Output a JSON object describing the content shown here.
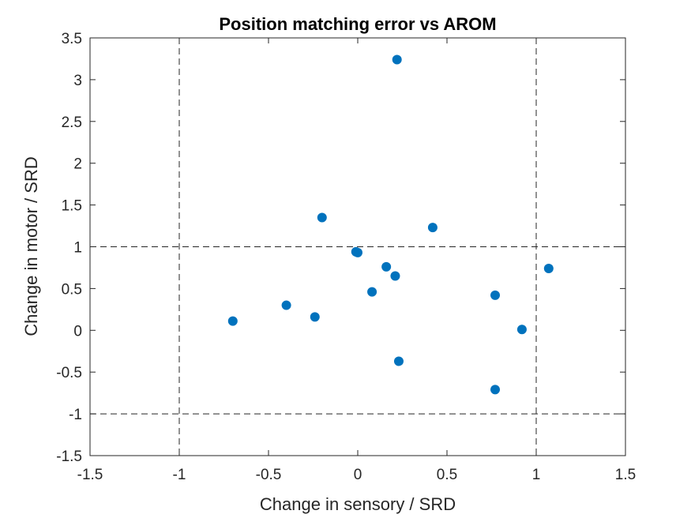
{
  "chart_data": {
    "type": "scatter",
    "title": "Position matching error vs AROM",
    "xlabel": "Change in sensory / SRD",
    "ylabel": "Change in motor / SRD",
    "xlim": [
      -1.5,
      1.5
    ],
    "ylim": [
      -1.5,
      3.5
    ],
    "xticks": [
      -1.5,
      -1,
      -0.5,
      0,
      0.5,
      1,
      1.5
    ],
    "xtick_labels": [
      "-1.5",
      "-1",
      "-0.5",
      "0",
      "0.5",
      "1",
      "1.5"
    ],
    "yticks": [
      -1.5,
      -1,
      -0.5,
      0,
      0.5,
      1,
      1.5,
      2,
      2.5,
      3,
      3.5
    ],
    "ytick_labels": [
      "-1.5",
      "-1",
      "-0.5",
      "0",
      "0.5",
      "1",
      "1.5",
      "2",
      "2.5",
      "3",
      "3.5"
    ],
    "grid": false,
    "reference_lines": {
      "vertical": [
        -1,
        1
      ],
      "horizontal": [
        -1,
        1
      ],
      "style": "dashed",
      "color": "#262626"
    },
    "marker_color": "#0072BD",
    "points": [
      {
        "x": 0.22,
        "y": 3.24
      },
      {
        "x": -0.2,
        "y": 1.35
      },
      {
        "x": 0.42,
        "y": 1.23
      },
      {
        "x": -0.01,
        "y": 0.94
      },
      {
        "x": 0.0,
        "y": 0.93
      },
      {
        "x": 0.16,
        "y": 0.76
      },
      {
        "x": 0.21,
        "y": 0.65
      },
      {
        "x": 1.07,
        "y": 0.74
      },
      {
        "x": 0.08,
        "y": 0.46
      },
      {
        "x": 0.77,
        "y": 0.42
      },
      {
        "x": -0.4,
        "y": 0.3
      },
      {
        "x": -0.24,
        "y": 0.16
      },
      {
        "x": -0.7,
        "y": 0.11
      },
      {
        "x": 0.92,
        "y": 0.01
      },
      {
        "x": 0.23,
        "y": -0.37
      },
      {
        "x": 0.77,
        "y": -0.71
      }
    ]
  }
}
